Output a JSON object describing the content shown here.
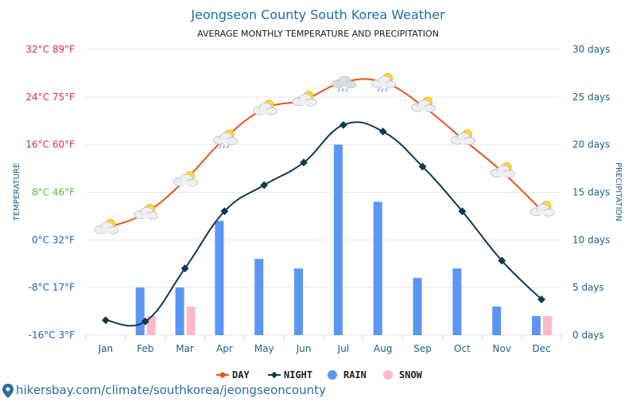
{
  "page": {
    "footer": "hikersbay.com/climate/southkorea/jeongseoncounty"
  },
  "colors": {
    "day": "#e8531c",
    "night": "#103a52",
    "rain": "#5b96f5",
    "snow": "#ffb8c8",
    "grid": "#e8e8e8",
    "title": "#1c6ea4"
  },
  "chart_data": {
    "type": "line",
    "title": "Jeongseon County South Korea Weather",
    "subtitle": "AVERAGE MONTHLY TEMPERATURE AND PRECIPITATION",
    "xlabel": "",
    "ylabel": "TEMPERATURE",
    "ylabel_right": "PRECIPITATION",
    "categories": [
      "Jan",
      "Feb",
      "Mar",
      "Apr",
      "May",
      "Jun",
      "Jul",
      "Aug",
      "Sep",
      "Oct",
      "Nov",
      "Dec"
    ],
    "ylim": [
      -16,
      32
    ],
    "y2lim": [
      0,
      30
    ],
    "grid": true,
    "legend_position": "bottom",
    "y_ticks": [
      {
        "value": 32,
        "label": "32°C 89°F",
        "color": "#e0245e"
      },
      {
        "value": 24,
        "label": "24°C 75°F",
        "color": "#e0245e"
      },
      {
        "value": 16,
        "label": "16°C 60°F",
        "color": "#e0245e"
      },
      {
        "value": 8,
        "label": "8°C 46°F",
        "color": "#5fb830"
      },
      {
        "value": 0,
        "label": "0°C 32°F",
        "color": "#1f5fb4"
      },
      {
        "value": -8,
        "label": "-8°C 17°F",
        "color": "#1f5fb4"
      },
      {
        "value": -16,
        "label": "-16°C 3°F",
        "color": "#1f5fb4"
      }
    ],
    "y2_ticks": [
      {
        "value": 30,
        "label": "30 days"
      },
      {
        "value": 25,
        "label": "25 days"
      },
      {
        "value": 20,
        "label": "20 days"
      },
      {
        "value": 15,
        "label": "15 days"
      },
      {
        "value": 10,
        "label": "10 days"
      },
      {
        "value": 5,
        "label": "5 days"
      },
      {
        "value": 0,
        "label": "0 days"
      }
    ],
    "series": [
      {
        "name": "DAY",
        "axis": "left",
        "kind": "line",
        "values": [
          2,
          4.5,
          10,
          17,
          22,
          23.5,
          26.5,
          26.5,
          22.5,
          17,
          11.5,
          5
        ]
      },
      {
        "name": "NIGHT",
        "axis": "left",
        "kind": "line",
        "values": [
          -13.5,
          -13.7,
          -4.8,
          4.8,
          9.2,
          13,
          19.3,
          18.2,
          12.3,
          4.8,
          -3.5,
          -10
        ]
      },
      {
        "name": "RAIN",
        "axis": "right",
        "kind": "bar",
        "values": [
          0,
          5,
          5,
          12,
          8,
          7,
          20,
          14,
          6,
          7,
          3,
          2
        ]
      },
      {
        "name": "SNOW",
        "axis": "right",
        "kind": "bar",
        "values": [
          0,
          2,
          3,
          0,
          0,
          0,
          0,
          0,
          0,
          0,
          0,
          2
        ]
      }
    ],
    "weather_icons": [
      "partly-cloudy-sun",
      "partly-cloudy-sun",
      "partly-cloudy-sun",
      "rain-cloud-sun",
      "partly-cloudy-sun",
      "partly-cloudy-sun",
      "rain-cloud",
      "rain-cloud-sun",
      "partly-cloudy-sun",
      "partly-cloudy-sun",
      "partly-cloudy-sun",
      "partly-cloudy-sun"
    ]
  }
}
